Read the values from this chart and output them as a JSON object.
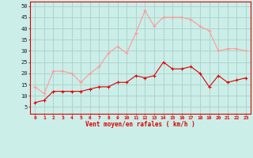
{
  "hours": [
    0,
    1,
    2,
    3,
    4,
    5,
    6,
    7,
    8,
    9,
    10,
    11,
    12,
    13,
    14,
    15,
    16,
    17,
    18,
    19,
    20,
    21,
    22,
    23
  ],
  "wind_avg": [
    7,
    8,
    12,
    12,
    12,
    12,
    13,
    14,
    14,
    16,
    16,
    19,
    18,
    19,
    25,
    22,
    22,
    23,
    20,
    14,
    19,
    16,
    17,
    18
  ],
  "wind_gust": [
    14,
    11,
    21,
    21,
    20,
    16,
    20,
    23,
    29,
    32,
    29,
    38,
    48,
    41,
    45,
    45,
    45,
    44,
    41,
    39,
    30,
    31,
    31,
    30
  ],
  "bg_color": "#cceee8",
  "grid_color": "#aad4ce",
  "avg_color": "#dd0000",
  "gust_color": "#ff9999",
  "xlabel": "Vent moyen/en rafales ( km/h )",
  "ylabel_ticks": [
    5,
    10,
    15,
    20,
    25,
    30,
    35,
    40,
    45,
    50
  ],
  "ylim": [
    2,
    52
  ],
  "xlim": [
    -0.5,
    23.5
  ]
}
